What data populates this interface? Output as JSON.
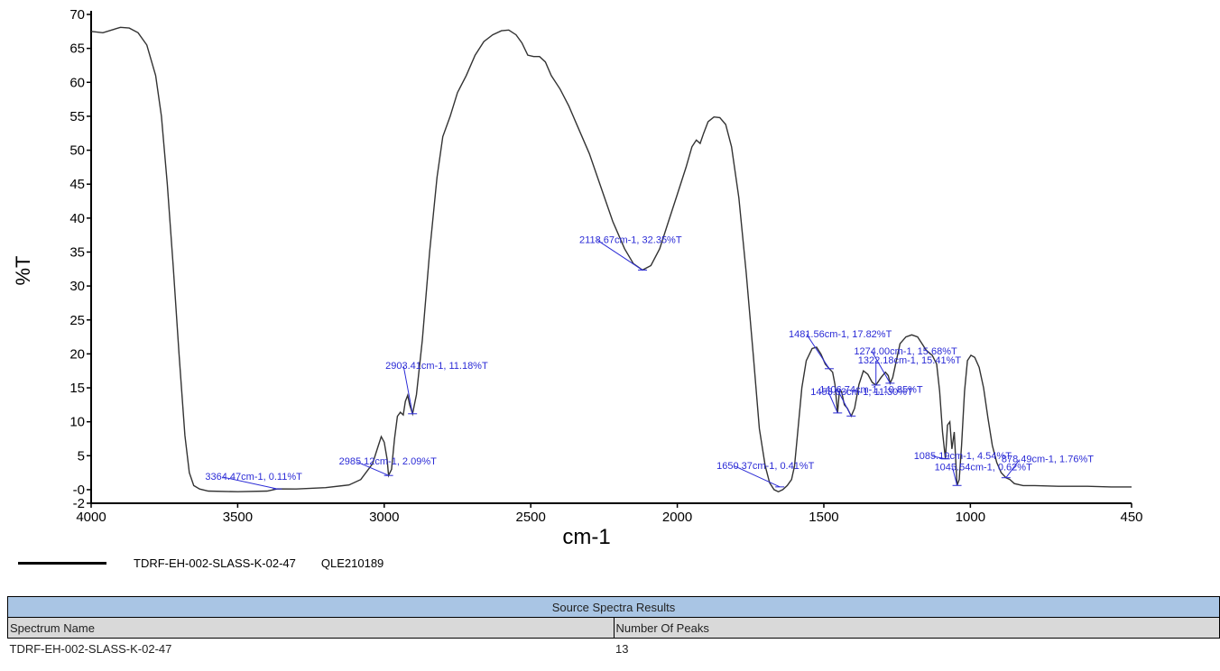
{
  "chart_data": {
    "type": "line",
    "xlabel": "cm-1",
    "ylabel": "%T",
    "xlim": [
      4000,
      450
    ],
    "ylim": [
      -2,
      70
    ],
    "x_ticks": [
      4000,
      3500,
      3000,
      2500,
      2000,
      1500,
      1000,
      450
    ],
    "y_ticks": [
      70,
      65,
      60,
      55,
      50,
      45,
      40,
      35,
      30,
      25,
      20,
      15,
      10,
      5,
      0,
      -2
    ],
    "y_tick_labels": [
      "70",
      "65",
      "60",
      "55",
      "50",
      "45",
      "40",
      "35",
      "30",
      "25",
      "20",
      "15",
      "10",
      "5",
      "-0",
      "-2"
    ],
    "series": [
      {
        "name": "TDRF-EH-002-SLASS-K-02-47",
        "color": "#333333",
        "points": [
          [
            4000,
            67.5
          ],
          [
            3960,
            67.3
          ],
          [
            3930,
            67.7
          ],
          [
            3900,
            68.1
          ],
          [
            3870,
            68.0
          ],
          [
            3840,
            67.3
          ],
          [
            3810,
            65.5
          ],
          [
            3780,
            61
          ],
          [
            3760,
            55
          ],
          [
            3740,
            45
          ],
          [
            3720,
            33
          ],
          [
            3700,
            20
          ],
          [
            3680,
            8
          ],
          [
            3665,
            2.5
          ],
          [
            3650,
            0.6
          ],
          [
            3630,
            0.1
          ],
          [
            3600,
            -0.2
          ],
          [
            3500,
            -0.3
          ],
          [
            3400,
            -0.2
          ],
          [
            3364.47,
            0.11
          ],
          [
            3300,
            0.1
          ],
          [
            3200,
            0.3
          ],
          [
            3120,
            0.7
          ],
          [
            3080,
            1.5
          ],
          [
            3040,
            3.8
          ],
          [
            3020,
            6.5
          ],
          [
            3010,
            7.8
          ],
          [
            3000,
            7.0
          ],
          [
            2990,
            4.5
          ],
          [
            2985.12,
            2.09
          ],
          [
            2975,
            3.0
          ],
          [
            2965,
            7.5
          ],
          [
            2955,
            10.8
          ],
          [
            2945,
            11.4
          ],
          [
            2935,
            11.0
          ],
          [
            2928,
            13.0
          ],
          [
            2920,
            13.9
          ],
          [
            2913,
            12.5
          ],
          [
            2903.41,
            11.18
          ],
          [
            2890,
            14
          ],
          [
            2870,
            22
          ],
          [
            2845,
            35
          ],
          [
            2820,
            46
          ],
          [
            2800,
            52
          ],
          [
            2775,
            55
          ],
          [
            2750,
            58.5
          ],
          [
            2720,
            61
          ],
          [
            2690,
            64
          ],
          [
            2660,
            66
          ],
          [
            2630,
            67
          ],
          [
            2600,
            67.6
          ],
          [
            2575,
            67.7
          ],
          [
            2550,
            67.0
          ],
          [
            2530,
            65.8
          ],
          [
            2510,
            64.0
          ],
          [
            2490,
            63.8
          ],
          [
            2470,
            63.8
          ],
          [
            2450,
            63.0
          ],
          [
            2430,
            61.0
          ],
          [
            2400,
            59.0
          ],
          [
            2370,
            56.5
          ],
          [
            2340,
            53.5
          ],
          [
            2300,
            49.5
          ],
          [
            2260,
            44.5
          ],
          [
            2220,
            39.5
          ],
          [
            2180,
            35.5
          ],
          [
            2150,
            33.3
          ],
          [
            2118.67,
            32.35
          ],
          [
            2090,
            33.0
          ],
          [
            2060,
            35.5
          ],
          [
            2030,
            39.5
          ],
          [
            2000,
            43.5
          ],
          [
            1970,
            47.5
          ],
          [
            1950,
            50.5
          ],
          [
            1935,
            51.5
          ],
          [
            1922,
            51.0
          ],
          [
            1910,
            52.5
          ],
          [
            1895,
            54.2
          ],
          [
            1875,
            54.9
          ],
          [
            1855,
            54.8
          ],
          [
            1835,
            53.8
          ],
          [
            1815,
            50.5
          ],
          [
            1790,
            43
          ],
          [
            1765,
            32
          ],
          [
            1740,
            19.5
          ],
          [
            1720,
            9
          ],
          [
            1700,
            3.5
          ],
          [
            1685,
            1.0
          ],
          [
            1670,
            0.0
          ],
          [
            1655,
            -0.3
          ],
          [
            1640,
            0.0
          ],
          [
            1625,
            0.6
          ],
          [
            1610,
            1.5
          ],
          [
            1600,
            3.5
          ],
          [
            1590,
            8
          ],
          [
            1575,
            15
          ],
          [
            1560,
            19
          ],
          [
            1540,
            20.8
          ],
          [
            1525,
            21.0
          ],
          [
            1510,
            20.0
          ],
          [
            1495,
            18.5
          ],
          [
            1481.56,
            17.82
          ],
          [
            1470,
            17.3
          ],
          [
            1462,
            15.5
          ],
          [
            1453.03,
            11.3
          ],
          [
            1447,
            14.5
          ],
          [
            1440,
            14.5
          ],
          [
            1430,
            12.5
          ],
          [
            1420,
            12.0
          ],
          [
            1406.74,
            10.85
          ],
          [
            1395,
            12.0
          ],
          [
            1380,
            15.5
          ],
          [
            1365,
            17.5
          ],
          [
            1350,
            17.0
          ],
          [
            1335,
            15.8
          ],
          [
            1322.18,
            15.41
          ],
          [
            1305,
            16.5
          ],
          [
            1290,
            17.3
          ],
          [
            1280,
            16.8
          ],
          [
            1274.0,
            15.68
          ],
          [
            1265,
            16.5
          ],
          [
            1255,
            18.5
          ],
          [
            1240,
            21.5
          ],
          [
            1220,
            22.5
          ],
          [
            1200,
            22.8
          ],
          [
            1180,
            22.5
          ],
          [
            1165,
            21.5
          ],
          [
            1150,
            20.5
          ],
          [
            1130,
            19.8
          ],
          [
            1115,
            18.5
          ],
          [
            1105,
            14.5
          ],
          [
            1095,
            8.5
          ],
          [
            1085.19,
            4.54
          ],
          [
            1078,
            9.5
          ],
          [
            1070,
            10.0
          ],
          [
            1063,
            6.0
          ],
          [
            1055,
            8.5
          ],
          [
            1045.54,
            0.62
          ],
          [
            1038,
            1.5
          ],
          [
            1030,
            6.5
          ],
          [
            1020,
            14.5
          ],
          [
            1010,
            19.0
          ],
          [
            998,
            19.8
          ],
          [
            985,
            19.5
          ],
          [
            970,
            18.0
          ],
          [
            955,
            15.0
          ],
          [
            940,
            10.5
          ],
          [
            925,
            6.5
          ],
          [
            910,
            4.0
          ],
          [
            895,
            2.5
          ],
          [
            878.49,
            1.76
          ],
          [
            865,
            1.5
          ],
          [
            850,
            0.9
          ],
          [
            820,
            0.6
          ],
          [
            780,
            0.6
          ],
          [
            700,
            0.5
          ],
          [
            600,
            0.5
          ],
          [
            520,
            0.4
          ],
          [
            450,
            0.4
          ]
        ]
      }
    ],
    "peaks": [
      {
        "x": 3364.47,
        "y": 0.11,
        "label": "3364.47cm-1, 0.11%T"
      },
      {
        "x": 2985.12,
        "y": 2.09,
        "label": "2985.12cm-1, 2.09%T"
      },
      {
        "x": 2903.41,
        "y": 11.18,
        "label": "2903.41cm-1, 11.18%T"
      },
      {
        "x": 2118.67,
        "y": 32.35,
        "label": "2118.67cm-1, 32.35%T"
      },
      {
        "x": 1650.37,
        "y": 0.41,
        "label": "1650.37cm-1, 0.41%T"
      },
      {
        "x": 1481.56,
        "y": 17.82,
        "label": "1481.56cm-1, 17.82%T"
      },
      {
        "x": 1453.03,
        "y": 11.3,
        "label": "1453.03cm-1, 11.30%T"
      },
      {
        "x": 1406.74,
        "y": 10.85,
        "label": "1406.74cm-1, 10.85%T"
      },
      {
        "x": 1322.18,
        "y": 15.41,
        "label": "1322.18cm-1, 15.41%T"
      },
      {
        "x": 1274.0,
        "y": 15.68,
        "label": "1274.00cm-1, 15.68%T"
      },
      {
        "x": 1085.19,
        "y": 4.54,
        "label": "1085.19cm-1, 4.54%T"
      },
      {
        "x": 1045.54,
        "y": 0.62,
        "label": "1045.54cm-1, 0.62%T"
      },
      {
        "x": 878.49,
        "y": 1.76,
        "label": "878.49cm-1, 1.76%T"
      }
    ],
    "grid": false,
    "legend_position": "bottom-left",
    "annotation_color": "#2b2bd6"
  },
  "legend": {
    "series_name": "TDRF-EH-002-SLASS-K-02-47",
    "sample_id": "QLE210189"
  },
  "results_table": {
    "title": "Source Spectra Results",
    "headers": [
      "Spectrum Name",
      "Number Of Peaks"
    ],
    "rows": [
      [
        "TDRF-EH-002-SLASS-K-02-47",
        "13"
      ]
    ]
  }
}
